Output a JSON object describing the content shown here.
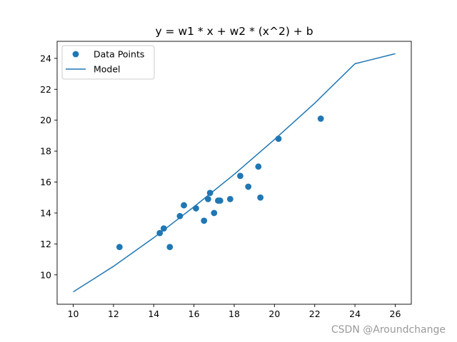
{
  "chart_data": {
    "type": "scatter",
    "title": "y = w1 * x + w2 * (x^2) + b",
    "xlabel": "",
    "ylabel": "",
    "xlim": [
      9.2,
      26.8
    ],
    "ylim": [
      8.1,
      25.1
    ],
    "xticks": [
      10,
      12,
      14,
      16,
      18,
      20,
      22,
      24,
      26
    ],
    "yticks": [
      10,
      12,
      14,
      16,
      18,
      20,
      22,
      24
    ],
    "grid": false,
    "legend_position": "top-left",
    "series": [
      {
        "name": "Data Points",
        "kind": "scatter",
        "color": "#1f77b4",
        "points": [
          [
            12.3,
            11.8
          ],
          [
            14.3,
            12.7
          ],
          [
            14.5,
            13.0
          ],
          [
            14.8,
            11.8
          ],
          [
            15.3,
            13.8
          ],
          [
            15.5,
            14.5
          ],
          [
            16.1,
            14.3
          ],
          [
            16.5,
            13.5
          ],
          [
            16.7,
            14.9
          ],
          [
            16.8,
            15.3
          ],
          [
            17.0,
            14.0
          ],
          [
            17.2,
            14.8
          ],
          [
            17.3,
            14.8
          ],
          [
            17.8,
            14.9
          ],
          [
            18.3,
            16.4
          ],
          [
            18.7,
            15.7
          ],
          [
            19.2,
            17.0
          ],
          [
            19.3,
            15.0
          ],
          [
            20.2,
            18.8
          ],
          [
            22.3,
            20.1
          ]
        ]
      },
      {
        "name": "Model",
        "kind": "line",
        "color": "#1f77b4",
        "points": [
          [
            10,
            8.9
          ],
          [
            12,
            10.55
          ],
          [
            14,
            12.4
          ],
          [
            16,
            14.4
          ],
          [
            18,
            16.5
          ],
          [
            20,
            18.75
          ],
          [
            22,
            21.1
          ],
          [
            24,
            23.65
          ],
          [
            26,
            24.3
          ]
        ]
      }
    ]
  },
  "watermark": "CSDN @Aroundchange"
}
